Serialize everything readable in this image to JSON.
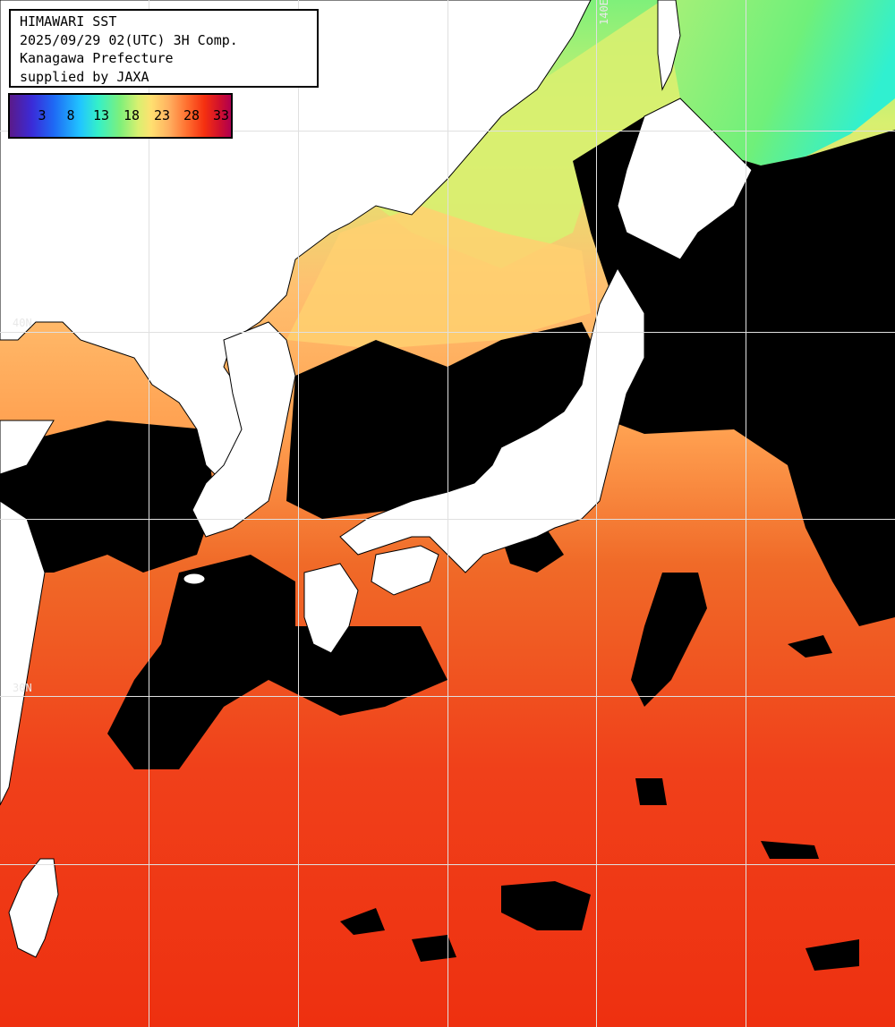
{
  "info": {
    "title": "HIMAWARI SST",
    "datetime": "2025/09/29 02(UTC) 3H Comp.",
    "region": "Kanagawa Prefecture",
    "credit": "supplied by JAXA"
  },
  "colorbar": {
    "ticks": [
      "3",
      "8",
      "13",
      "18",
      "23",
      "28",
      "33"
    ]
  },
  "grid_labels": {
    "lon_140": "140E",
    "lat_40": "40N",
    "lat_30": "30N"
  },
  "colors": {
    "land": "#ffffff",
    "no_data": "#000000",
    "warm_sea": "#f0401a",
    "mid_sea": "#ffa050",
    "cool_sea": "#d8f070",
    "cold_sea": "#7ff07a",
    "grid": "#e0e0e0"
  }
}
